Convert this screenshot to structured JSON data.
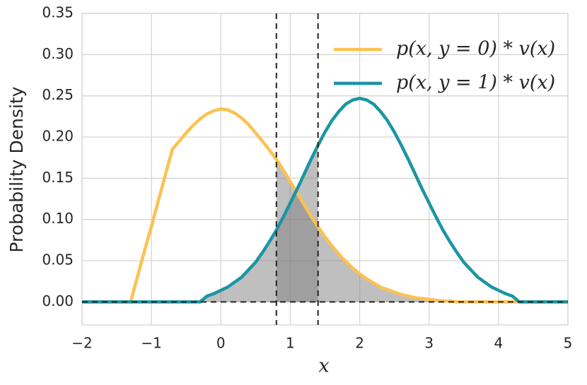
{
  "chart_data": {
    "type": "line",
    "x_label": "x",
    "y_label": "Probability Density",
    "x": [
      -2,
      -1.9,
      -1.8,
      -1.7,
      -1.6,
      -1.5,
      -1.4,
      -1.3,
      -1.2,
      -1.1,
      -1,
      -0.9,
      -0.8,
      -0.7,
      -0.6,
      -0.5,
      -0.4,
      -0.3,
      -0.2,
      -0.1,
      0,
      0.1,
      0.2,
      0.3,
      0.4,
      0.5,
      0.6,
      0.7,
      0.8,
      0.9,
      1,
      1.1,
      1.2,
      1.3,
      1.4,
      1.5,
      1.6,
      1.7,
      1.8,
      1.9,
      2,
      2.1,
      2.2,
      2.3,
      2.4,
      2.5,
      2.6,
      2.7,
      2.8,
      2.9,
      3,
      3.1,
      3.2,
      3.3,
      3.4,
      3.5,
      3.6,
      3.7,
      3.8,
      3.9,
      4,
      4.1,
      4.2,
      4.3,
      4.4,
      4.5,
      4.6,
      4.7,
      4.8,
      4.9,
      5
    ],
    "series": [
      {
        "name": "p(x, y = 0) * v(x)",
        "color": "#fdc150",
        "values": [
          0,
          0,
          0,
          0,
          0,
          0,
          0,
          0,
          0.031,
          0.062,
          0.092,
          0.123,
          0.154,
          0.185,
          0.195,
          0.205,
          0.214,
          0.222,
          0.228,
          0.232,
          0.234,
          0.233,
          0.229,
          0.223,
          0.215,
          0.205,
          0.195,
          0.184,
          0.173,
          0.16,
          0.146,
          0.132,
          0.118,
          0.104,
          0.091,
          0.079,
          0.068,
          0.058,
          0.049,
          0.041,
          0.034,
          0.028,
          0.023,
          0.018,
          0.015,
          0.012,
          0.009,
          0.007,
          0.005,
          0.004,
          0.003,
          0.002,
          0.001,
          0.001,
          0,
          0,
          0,
          0,
          0,
          0,
          0,
          0,
          0,
          0,
          0,
          0,
          0,
          0,
          0,
          0,
          0
        ]
      },
      {
        "name": "p(x, y = 1) * v(x)",
        "color": "#1a95a3",
        "values": [
          0,
          0,
          0,
          0,
          0,
          0,
          0,
          0,
          0,
          0,
          0,
          0,
          0,
          0,
          0,
          0,
          0,
          0,
          0.007,
          0.01,
          0.014,
          0.018,
          0.024,
          0.03,
          0.039,
          0.048,
          0.06,
          0.073,
          0.087,
          0.103,
          0.12,
          0.137,
          0.155,
          0.173,
          0.19,
          0.206,
          0.22,
          0.231,
          0.24,
          0.245,
          0.247,
          0.245,
          0.24,
          0.231,
          0.22,
          0.206,
          0.19,
          0.173,
          0.155,
          0.137,
          0.12,
          0.103,
          0.087,
          0.073,
          0.06,
          0.048,
          0.039,
          0.03,
          0.024,
          0.018,
          0.014,
          0.01,
          0.007,
          0,
          0,
          0,
          0,
          0,
          0,
          0,
          0
        ]
      }
    ],
    "vlines": [
      0.8,
      1.4
    ],
    "hline": 0,
    "xlim": [
      -2,
      5
    ],
    "ylim": [
      -0.028,
      0.35
    ],
    "xticks": [
      {
        "value": -2,
        "label": "−2"
      },
      {
        "value": -1,
        "label": "−1"
      },
      0,
      1,
      2,
      3,
      4,
      5
    ],
    "yticks": [
      {
        "value": 0,
        "label": "0.00"
      },
      0.05,
      {
        "value": 0.1,
        "label": "0.10"
      },
      0.15,
      {
        "value": 0.2,
        "label": "0.20"
      },
      0.25,
      {
        "value": 0.3,
        "label": "0.30"
      },
      0.35
    ],
    "grid": true,
    "legend": "upper right",
    "fill_color": "#808080"
  }
}
